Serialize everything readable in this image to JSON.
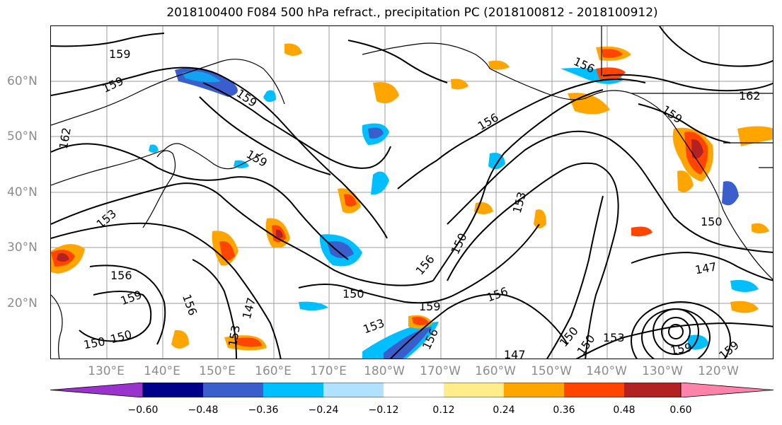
{
  "title": "2018100400 F084 500 hPa refract., precipitation PC (2018100812 - 2018100912)",
  "lat_labels": [
    "60°N",
    "50°N",
    "40°N",
    "30°N",
    "20°N"
  ],
  "lon_labels": [
    "130°E",
    "140°E",
    "150°E",
    "160°E",
    "170°E",
    "180°W",
    "170°W",
    "160°W",
    "150°W",
    "140°W",
    "130°W",
    "120°W"
  ],
  "colorbar": {
    "ticks": [
      "−0.60",
      "−0.48",
      "−0.36",
      "−0.24",
      "−0.12",
      "0.12",
      "0.24",
      "0.36",
      "0.48",
      "0.60"
    ],
    "colors": [
      "#9a32cd",
      "#00008b",
      "#3a5fcd",
      "#00bfff",
      "#b0e2ff",
      "#ffffff",
      "#ffec8b",
      "#ffa500",
      "#ff4500",
      "#b22222",
      "#ff82ab"
    ]
  },
  "contour_labels": [
    {
      "text": "159"
    },
    {
      "text": "159"
    },
    {
      "text": "162"
    },
    {
      "text": "159"
    },
    {
      "text": "159"
    },
    {
      "text": "153"
    },
    {
      "text": "156"
    },
    {
      "text": "159"
    },
    {
      "text": "156"
    },
    {
      "text": "150"
    },
    {
      "text": "150"
    },
    {
      "text": "147"
    },
    {
      "text": "153"
    },
    {
      "text": "150"
    },
    {
      "text": "153"
    },
    {
      "text": "159"
    },
    {
      "text": "156"
    },
    {
      "text": "156"
    },
    {
      "text": "156"
    },
    {
      "text": "150"
    },
    {
      "text": "153"
    },
    {
      "text": "156"
    },
    {
      "text": "147"
    },
    {
      "text": "150"
    },
    {
      "text": "150"
    },
    {
      "text": "153"
    },
    {
      "text": "159"
    },
    {
      "text": "159"
    },
    {
      "text": "150"
    },
    {
      "text": "147"
    },
    {
      "text": "156"
    },
    {
      "text": "159"
    },
    {
      "text": "162"
    }
  ]
}
